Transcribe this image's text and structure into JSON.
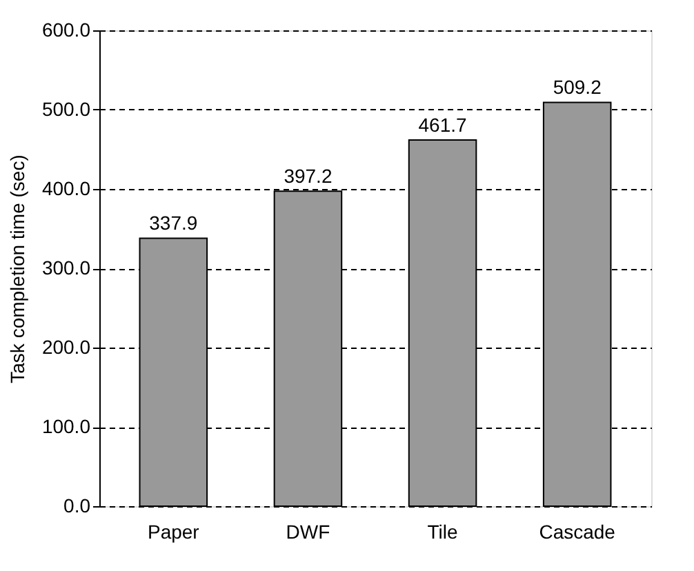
{
  "chart_data": {
    "type": "bar",
    "ylabel": "Task completion time (sec)",
    "categories": [
      "Paper",
      "DWF",
      "Tile",
      "Cascade"
    ],
    "values": [
      337.9,
      397.2,
      461.7,
      509.2
    ],
    "color": "#999999",
    "ylim": [
      0,
      600
    ],
    "yticks": [
      {
        "value": 0,
        "label": "0.0"
      },
      {
        "value": 100,
        "label": "100.0"
      },
      {
        "value": 200,
        "label": "200.0"
      },
      {
        "value": 300,
        "label": "300.0"
      },
      {
        "value": 400,
        "label": "400.0"
      },
      {
        "value": 500,
        "label": "500.0"
      },
      {
        "value": 600,
        "label": "600.0"
      }
    ],
    "grid": "y",
    "data_labels": true
  }
}
